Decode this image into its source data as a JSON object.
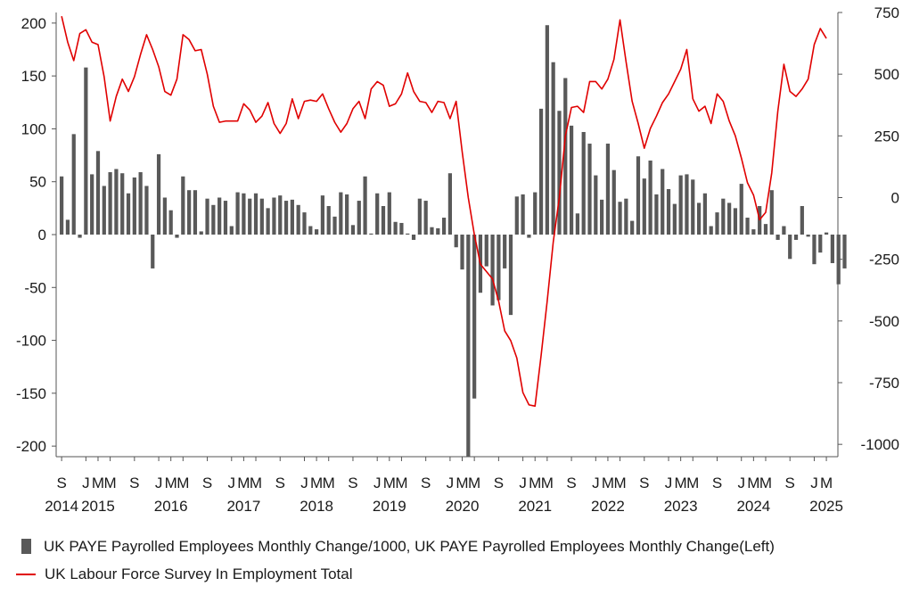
{
  "chart_data": {
    "type": "bar+line",
    "x_start": "2014-09",
    "x_end": "2025-04",
    "xticks": [
      {
        "month": "2014-09",
        "label": "S"
      },
      {
        "month": "2015-01",
        "label": "J"
      },
      {
        "month": "2015-03",
        "label": "M"
      },
      {
        "month": "2015-05",
        "label": "M"
      },
      {
        "month": "2015-09",
        "label": "S"
      },
      {
        "month": "2016-01",
        "label": "J"
      },
      {
        "month": "2016-03",
        "label": "M"
      },
      {
        "month": "2016-05",
        "label": "M"
      },
      {
        "month": "2016-09",
        "label": "S"
      },
      {
        "month": "2017-01",
        "label": "J"
      },
      {
        "month": "2017-03",
        "label": "M"
      },
      {
        "month": "2017-05",
        "label": "M"
      },
      {
        "month": "2017-09",
        "label": "S"
      },
      {
        "month": "2018-01",
        "label": "J"
      },
      {
        "month": "2018-03",
        "label": "M"
      },
      {
        "month": "2018-05",
        "label": "M"
      },
      {
        "month": "2018-09",
        "label": "S"
      },
      {
        "month": "2019-01",
        "label": "J"
      },
      {
        "month": "2019-03",
        "label": "M"
      },
      {
        "month": "2019-05",
        "label": "M"
      },
      {
        "month": "2019-09",
        "label": "S"
      },
      {
        "month": "2020-01",
        "label": "J"
      },
      {
        "month": "2020-03",
        "label": "M"
      },
      {
        "month": "2020-05",
        "label": "M"
      },
      {
        "month": "2020-09",
        "label": "S"
      },
      {
        "month": "2021-01",
        "label": "J"
      },
      {
        "month": "2021-03",
        "label": "M"
      },
      {
        "month": "2021-05",
        "label": "M"
      },
      {
        "month": "2021-09",
        "label": "S"
      },
      {
        "month": "2022-01",
        "label": "J"
      },
      {
        "month": "2022-03",
        "label": "M"
      },
      {
        "month": "2022-05",
        "label": "M"
      },
      {
        "month": "2022-09",
        "label": "S"
      },
      {
        "month": "2023-01",
        "label": "J"
      },
      {
        "month": "2023-03",
        "label": "M"
      },
      {
        "month": "2023-05",
        "label": "M"
      },
      {
        "month": "2023-09",
        "label": "S"
      },
      {
        "month": "2024-01",
        "label": "J"
      },
      {
        "month": "2024-03",
        "label": "M"
      },
      {
        "month": "2024-05",
        "label": "M"
      },
      {
        "month": "2024-09",
        "label": "S"
      },
      {
        "month": "2025-01",
        "label": "J"
      },
      {
        "month": "2025-03",
        "label": "M"
      }
    ],
    "year_labels": [
      {
        "month": "2014-09",
        "label": "2014"
      },
      {
        "month": "2015-03",
        "label": "2015"
      },
      {
        "month": "2016-03",
        "label": "2016"
      },
      {
        "month": "2017-03",
        "label": "2017"
      },
      {
        "month": "2018-03",
        "label": "2018"
      },
      {
        "month": "2019-03",
        "label": "2019"
      },
      {
        "month": "2020-03",
        "label": "2020"
      },
      {
        "month": "2021-03",
        "label": "2021"
      },
      {
        "month": "2022-03",
        "label": "2022"
      },
      {
        "month": "2023-03",
        "label": "2023"
      },
      {
        "month": "2024-03",
        "label": "2024"
      },
      {
        "month": "2025-03",
        "label": "2025"
      }
    ],
    "y_left": {
      "min": -210,
      "max": 210,
      "ticks": [
        200,
        150,
        100,
        50,
        0,
        -50,
        -100,
        -150,
        -200
      ]
    },
    "y_right": {
      "min": -1050,
      "max": 750,
      "ticks": [
        750,
        500,
        250,
        0,
        -250,
        -500,
        -750,
        -1000
      ]
    },
    "grid": false,
    "legend_position": "bottom",
    "series": [
      {
        "name": "UK PAYE Payrolled Employees Monthly Change/1000, UK PAYE Payrolled Employees Monthly Change(Left)",
        "type": "bar",
        "axis": "left",
        "color": "#595959",
        "values": [
          55,
          14,
          95,
          -3,
          158,
          57,
          79,
          46,
          59,
          62,
          58,
          39,
          54,
          59,
          46,
          -32,
          76,
          35,
          23,
          -3,
          55,
          42,
          42,
          3,
          34,
          28,
          35,
          32,
          8,
          40,
          39,
          34,
          39,
          34,
          25,
          35,
          37,
          32,
          33,
          28,
          21,
          8,
          5,
          37,
          27,
          17,
          40,
          38,
          9,
          32,
          55,
          1,
          39,
          27,
          40,
          12,
          11,
          1,
          -5,
          34,
          32,
          7,
          6,
          16,
          58,
          -12,
          -33,
          -210,
          -155,
          -55,
          -30,
          -67,
          -62,
          -32,
          -76,
          36,
          38,
          -3,
          40,
          119,
          198,
          163,
          117,
          148,
          103,
          20,
          97,
          86,
          56,
          33,
          86,
          61,
          31,
          34,
          13,
          74,
          53,
          70,
          38,
          62,
          43,
          29,
          56,
          57,
          52,
          30,
          39,
          8,
          21,
          34,
          30,
          25,
          48,
          16,
          5,
          27,
          10,
          42,
          -5,
          8,
          -23,
          -5,
          27,
          -2,
          -28,
          -17,
          2,
          -27,
          -47,
          -32
        ]
      },
      {
        "name": "UK Labour Force Survey In Employment Total",
        "type": "line",
        "axis": "right",
        "color": "#e00000",
        "values": [
          735,
          630,
          555,
          665,
          680,
          630,
          620,
          490,
          310,
          410,
          480,
          430,
          490,
          580,
          660,
          600,
          530,
          430,
          415,
          480,
          660,
          640,
          595,
          600,
          500,
          370,
          305,
          310,
          310,
          310,
          380,
          355,
          305,
          330,
          385,
          300,
          260,
          300,
          400,
          320,
          390,
          395,
          390,
          420,
          360,
          305,
          265,
          300,
          360,
          390,
          320,
          440,
          470,
          455,
          370,
          380,
          420,
          505,
          430,
          390,
          385,
          345,
          390,
          385,
          320,
          390,
          185,
          0,
          -150,
          -270,
          -300,
          -330,
          -420,
          -540,
          -580,
          -650,
          -790,
          -840,
          -845,
          -640,
          -420,
          -180,
          0,
          250,
          365,
          370,
          345,
          470,
          470,
          440,
          480,
          560,
          720,
          550,
          390,
          300,
          200,
          280,
          330,
          385,
          420,
          470,
          520,
          600,
          400,
          350,
          370,
          300,
          420,
          390,
          310,
          250,
          160,
          60,
          10,
          -90,
          -60,
          100,
          350,
          540,
          430,
          410,
          440,
          480,
          620,
          685,
          645
        ]
      }
    ]
  }
}
